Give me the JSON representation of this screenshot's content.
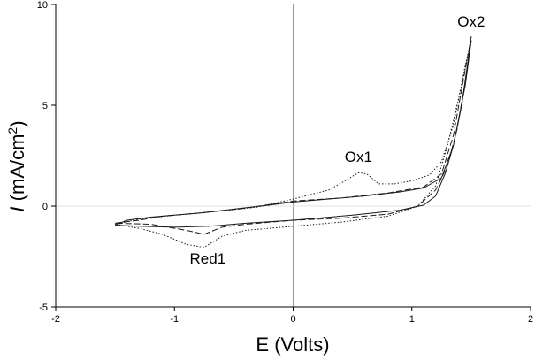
{
  "chart_data": {
    "type": "line",
    "title": "",
    "xlabel": "E (Volts)",
    "ylabel_italic": "I",
    "ylabel_rest": " (mA/cm",
    "ylabel_sup": "2",
    "ylabel_close": ")",
    "xlim": [
      -2,
      2
    ],
    "ylim": [
      -5,
      10
    ],
    "xticks": [
      -2,
      -1,
      0,
      1,
      2
    ],
    "yticks": [
      -5,
      0,
      5,
      10
    ],
    "x_tick_labels": [
      "-2",
      "-1",
      "0",
      "1",
      "2"
    ],
    "y_tick_labels": [
      "-5",
      "0",
      "5",
      "10"
    ],
    "grid": false,
    "zero_lines": true,
    "colors": {
      "axis": "#000000",
      "curve": "#1a1a1a",
      "zero_line": "#9a9a9a"
    },
    "series": [
      {
        "dash": "solid",
        "values": [
          [
            -1.5,
            -0.95
          ],
          [
            -1.4,
            -0.7
          ],
          [
            -1.2,
            -0.55
          ],
          [
            -1.0,
            -0.45
          ],
          [
            -0.8,
            -0.35
          ],
          [
            -0.5,
            -0.15
          ],
          [
            -0.2,
            0.05
          ],
          [
            0.0,
            0.2
          ],
          [
            0.3,
            0.35
          ],
          [
            0.6,
            0.5
          ],
          [
            0.9,
            0.7
          ],
          [
            1.1,
            0.9
          ],
          [
            1.25,
            1.4
          ],
          [
            1.35,
            3.0
          ],
          [
            1.45,
            6.0
          ],
          [
            1.5,
            8.2
          ],
          [
            1.48,
            7.5
          ],
          [
            1.42,
            5.0
          ],
          [
            1.35,
            3.0
          ],
          [
            1.28,
            1.6
          ],
          [
            1.2,
            0.5
          ],
          [
            1.1,
            0.05
          ],
          [
            0.9,
            -0.2
          ],
          [
            0.5,
            -0.45
          ],
          [
            0.0,
            -0.7
          ],
          [
            -0.4,
            -0.85
          ],
          [
            -0.7,
            -1.0
          ],
          [
            -1.0,
            -1.05
          ],
          [
            -1.3,
            -1.0
          ],
          [
            -1.5,
            -0.95
          ]
        ]
      },
      {
        "dash": "dashed",
        "values": [
          [
            -1.5,
            -0.85
          ],
          [
            -1.3,
            -0.7
          ],
          [
            -1.1,
            -0.5
          ],
          [
            -0.8,
            -0.35
          ],
          [
            -0.4,
            -0.1
          ],
          [
            0.0,
            0.25
          ],
          [
            0.4,
            0.4
          ],
          [
            0.8,
            0.65
          ],
          [
            1.1,
            0.95
          ],
          [
            1.25,
            1.6
          ],
          [
            1.35,
            3.5
          ],
          [
            1.45,
            6.8
          ],
          [
            1.5,
            8.4
          ],
          [
            1.46,
            6.5
          ],
          [
            1.38,
            3.8
          ],
          [
            1.3,
            2.0
          ],
          [
            1.2,
            0.8
          ],
          [
            1.05,
            0.0
          ],
          [
            0.8,
            -0.4
          ],
          [
            0.4,
            -0.6
          ],
          [
            0.0,
            -0.7
          ],
          [
            -0.4,
            -0.9
          ],
          [
            -0.6,
            -1.05
          ],
          [
            -0.75,
            -1.4
          ],
          [
            -0.9,
            -1.2
          ],
          [
            -1.2,
            -0.9
          ],
          [
            -1.5,
            -0.85
          ]
        ]
      },
      {
        "dash": "dotted",
        "values": [
          [
            -1.5,
            -0.9
          ],
          [
            -1.3,
            -0.65
          ],
          [
            -1.0,
            -0.45
          ],
          [
            -0.7,
            -0.3
          ],
          [
            -0.3,
            -0.05
          ],
          [
            0.0,
            0.35
          ],
          [
            0.3,
            0.8
          ],
          [
            0.45,
            1.3
          ],
          [
            0.55,
            1.65
          ],
          [
            0.62,
            1.6
          ],
          [
            0.72,
            1.1
          ],
          [
            0.85,
            1.1
          ],
          [
            1.0,
            1.25
          ],
          [
            1.15,
            1.55
          ],
          [
            1.25,
            2.2
          ],
          [
            1.35,
            4.0
          ],
          [
            1.45,
            7.0
          ],
          [
            1.5,
            8.2
          ],
          [
            1.4,
            5.5
          ],
          [
            1.3,
            3.0
          ],
          [
            1.2,
            1.0
          ],
          [
            1.05,
            0.0
          ],
          [
            0.8,
            -0.5
          ],
          [
            0.4,
            -0.8
          ],
          [
            0.0,
            -1.0
          ],
          [
            -0.4,
            -1.2
          ],
          [
            -0.6,
            -1.5
          ],
          [
            -0.75,
            -2.05
          ],
          [
            -0.9,
            -1.9
          ],
          [
            -1.1,
            -1.4
          ],
          [
            -1.3,
            -1.1
          ],
          [
            -1.5,
            -0.9
          ]
        ]
      }
    ],
    "annotations": [
      {
        "text": "Ox1",
        "x": 0.55,
        "y": 2.2
      },
      {
        "text": "Ox2",
        "x": 1.5,
        "y": 8.9
      },
      {
        "text": "Red1",
        "x": -0.72,
        "y": -2.85
      }
    ]
  }
}
